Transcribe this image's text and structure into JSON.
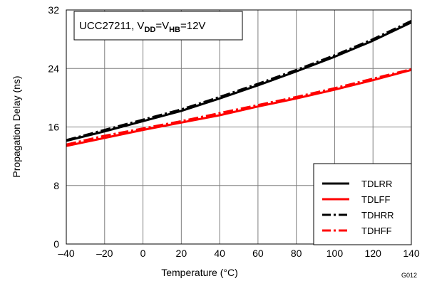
{
  "chart_data": {
    "type": "line",
    "xlabel": "Temperature (°C)",
    "ylabel": "Propagation Delay (ns)",
    "xlim": [
      -40,
      140
    ],
    "ylim": [
      0,
      32
    ],
    "xticks": [
      -40,
      -20,
      0,
      20,
      40,
      60,
      80,
      100,
      120,
      140
    ],
    "yticks": [
      0,
      8,
      16,
      24,
      32
    ],
    "xtick_labels": [
      "–40",
      "–20",
      "0",
      "20",
      "40",
      "60",
      "80",
      "100",
      "120",
      "140"
    ],
    "ytick_labels": [
      "0",
      "8",
      "16",
      "24",
      "32"
    ],
    "grid": true,
    "legend_position": "bottom-right",
    "annotation": {
      "prefix": "UCC27211, V",
      "sub1": "DD",
      "mid": "=V",
      "sub2": "HB",
      "suffix": "=12V"
    },
    "figure_id": "G012",
    "x": [
      -40,
      -20,
      0,
      20,
      40,
      60,
      80,
      100,
      120,
      140
    ],
    "series": [
      {
        "name": "TDLRR",
        "color": "#000000",
        "style": "solid",
        "values": [
          14.1,
          15.4,
          16.8,
          18.2,
          19.9,
          21.7,
          23.6,
          25.6,
          27.8,
          30.3
        ]
      },
      {
        "name": "TDLFF",
        "color": "#ff0000",
        "style": "solid",
        "values": [
          13.4,
          14.5,
          15.6,
          16.6,
          17.6,
          18.8,
          19.9,
          21.1,
          22.4,
          23.8
        ]
      },
      {
        "name": "TDHRR",
        "color": "#000000",
        "style": "dashdot",
        "values": [
          14.2,
          15.6,
          17.0,
          18.4,
          20.1,
          21.9,
          23.8,
          25.8,
          28.0,
          30.5
        ]
      },
      {
        "name": "TDHFF",
        "color": "#ff0000",
        "style": "dashdot",
        "values": [
          13.6,
          14.8,
          15.8,
          16.8,
          17.9,
          19.0,
          20.1,
          21.3,
          22.6,
          23.9
        ]
      }
    ]
  }
}
